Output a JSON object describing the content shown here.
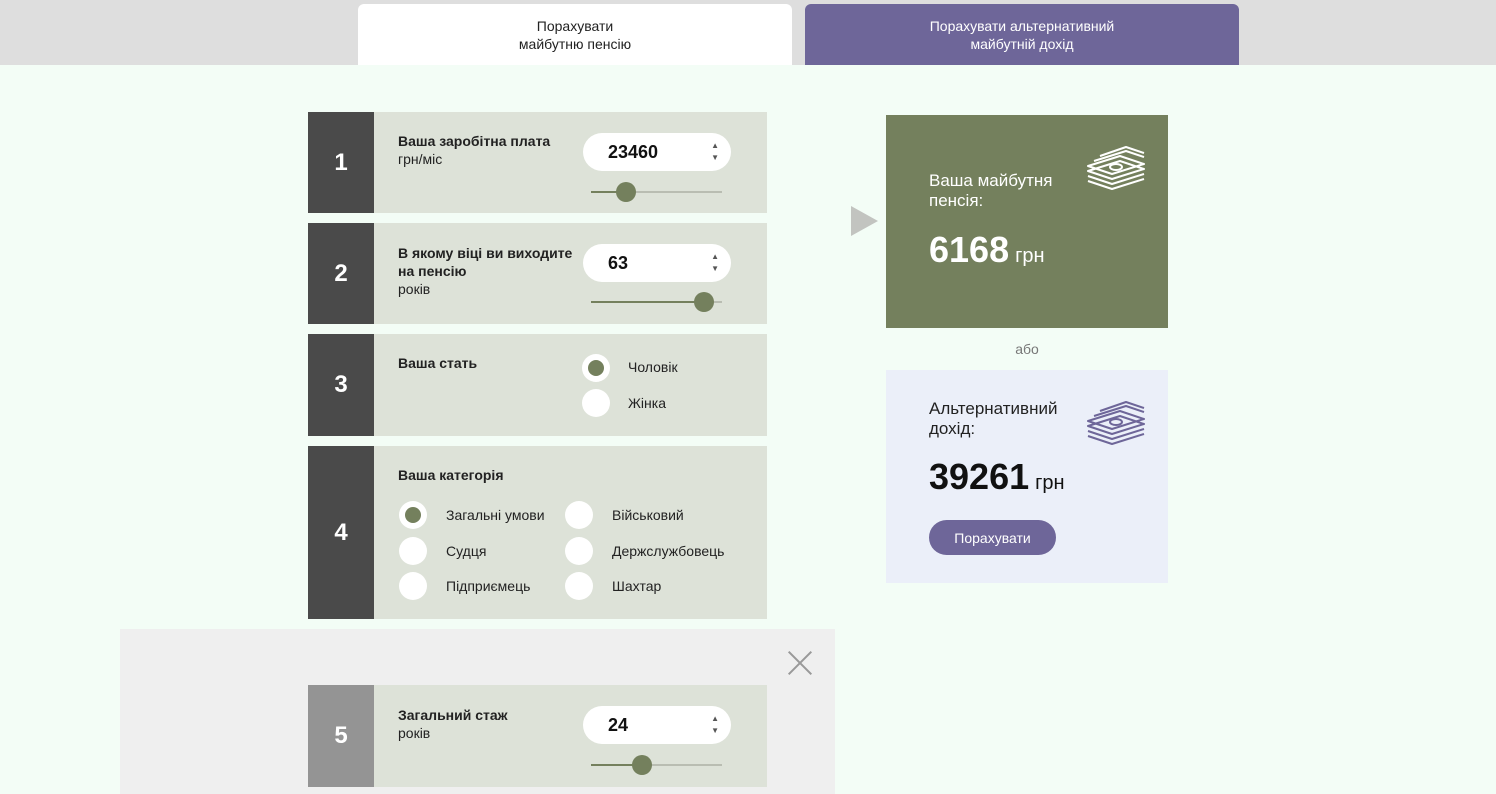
{
  "tabs": [
    {
      "line1": "Порахувати",
      "line2": "майбутню пенсію"
    },
    {
      "line1": "Порахувати альтернативний",
      "line2": "майбутній дохід"
    }
  ],
  "salary": {
    "step": "1",
    "title": "Ваша заробітна плата",
    "unit": "грн/міс",
    "value": "23460",
    "slider_fraction": 0.27
  },
  "age": {
    "step": "2",
    "title_line1": "В якому віці ви виходите",
    "title_line2": "на пенсію",
    "unit": "років",
    "value": "63",
    "slider_fraction": 0.86
  },
  "gender": {
    "step": "3",
    "title": "Ваша стать",
    "options": [
      "Чоловік",
      "Жінка"
    ],
    "selected": "Чоловік"
  },
  "category": {
    "step": "4",
    "title": "Ваша категорія",
    "options": [
      "Загальні умови",
      "Судця",
      "Підприємець",
      "Військовий",
      "Держслужбовець",
      "Шахтар"
    ],
    "selected": "Загальні умови"
  },
  "experience": {
    "step": "5",
    "title": "Загальний стаж",
    "unit": "років",
    "value": "24",
    "slider_fraction": 0.39
  },
  "result_pension": {
    "title_line1": "Ваша майбутня",
    "title_line2": "пенсія:",
    "value": "6168",
    "unit": "грн"
  },
  "or_text": "або",
  "result_alt": {
    "title_line1": "Альтернативний",
    "title_line2": "дохід:",
    "value": "39261",
    "unit": "грн",
    "button": "Порахувати"
  },
  "colors": {
    "accent_green": "#74805d",
    "accent_purple": "#6e6699",
    "card_bg": "#dde2d8",
    "step_bg": "#4a4a4a"
  },
  "icons": [
    "money-stack-icon",
    "close-icon",
    "spinner-arrows-icon",
    "play-arrow-icon"
  ]
}
